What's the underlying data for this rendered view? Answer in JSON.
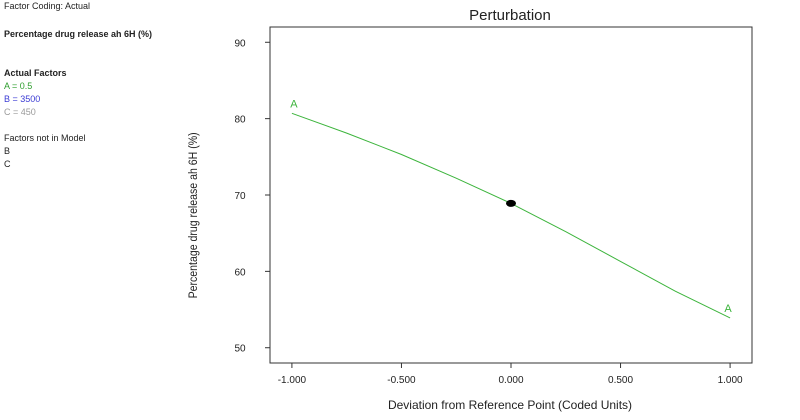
{
  "side_panel": {
    "factor_coding": "Factor Coding: Actual",
    "response": "Percentage drug release ah 6H (%)",
    "actual_factors_heading": "Actual Factors",
    "factors": [
      {
        "text": "A = 0.5",
        "color": "#2e9e2e"
      },
      {
        "text": "B = 3500",
        "color": "#3b3bd4"
      },
      {
        "text": "C = 450",
        "color": "#9a9a9a"
      }
    ],
    "not_in_model_heading": "Factors not in Model",
    "not_in_model": [
      "B",
      "C"
    ]
  },
  "chart_data": {
    "type": "line",
    "title": "Perturbation",
    "xlabel": "Deviation from Reference Point (Coded Units)",
    "ylabel": "Percentage drug release ah 6H (%)",
    "xlim": [
      -1.1,
      1.1
    ],
    "ylim": [
      48,
      92
    ],
    "x_ticks": [
      -1.0,
      -0.5,
      0.0,
      0.5,
      1.0
    ],
    "x_tick_labels": [
      "-1.000",
      "-0.500",
      "0.000",
      "0.500",
      "1.000"
    ],
    "y_ticks": [
      50,
      60,
      70,
      80,
      90
    ],
    "y_tick_labels": [
      "50",
      "60",
      "70",
      "80",
      "90"
    ],
    "series": [
      {
        "name": "A",
        "color": "#3cb43c",
        "x": [
          -1.0,
          -0.75,
          -0.5,
          -0.25,
          0.0,
          0.25,
          0.5,
          0.75,
          1.0
        ],
        "y": [
          80.7,
          78.1,
          75.3,
          72.2,
          68.9,
          65.2,
          61.3,
          57.4,
          53.9
        ]
      }
    ],
    "series_end_labels": [
      {
        "text": "A",
        "x": -1.0,
        "y": 80.7,
        "color": "#3cb43c"
      },
      {
        "text": "A",
        "x": 1.0,
        "y": 53.9,
        "color": "#3cb43c"
      }
    ],
    "reference_point": {
      "x": 0.0,
      "y": 68.9
    }
  }
}
